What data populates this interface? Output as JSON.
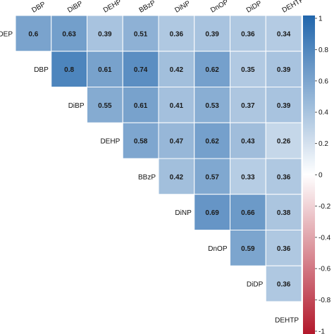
{
  "chart_data": {
    "type": "heatmap",
    "variables": [
      "DEP",
      "DBP",
      "DiBP",
      "DEHP",
      "BBzP",
      "DiNP",
      "DnOP",
      "DiDP",
      "DEHTP"
    ],
    "column_labels": [
      "DBP",
      "DiBP",
      "DEHP",
      "BBzP",
      "DiNP",
      "DnOP",
      "DiDP",
      "DEHTP"
    ],
    "row_labels": [
      "DEP",
      "DBP",
      "DiBP",
      "DEHP",
      "BBzP",
      "DiNP",
      "DnOP",
      "DiDP",
      "DEHTP"
    ],
    "values": [
      [
        0.6,
        0.63,
        0.39,
        0.51,
        0.36,
        0.39,
        0.36,
        0.34
      ],
      [
        0.8,
        0.61,
        0.74,
        0.42,
        0.62,
        0.35,
        0.39
      ],
      [
        0.55,
        0.61,
        0.41,
        0.53,
        0.37,
        0.39
      ],
      [
        0.58,
        0.47,
        0.62,
        0.43,
        0.26
      ],
      [
        0.42,
        0.57,
        0.33,
        0.36
      ],
      [
        0.69,
        0.66,
        0.38
      ],
      [
        0.59,
        0.36
      ],
      [
        0.36
      ]
    ],
    "value_labels": [
      [
        "0.6",
        "0.63",
        "0.39",
        "0.51",
        "0.36",
        "0.39",
        "0.36",
        "0.34"
      ],
      [
        "0.8",
        "0.61",
        "0.74",
        "0.42",
        "0.62",
        "0.35",
        "0.39"
      ],
      [
        "0.55",
        "0.61",
        "0.41",
        "0.53",
        "0.37",
        "0.39"
      ],
      [
        "0.58",
        "0.47",
        "0.62",
        "0.43",
        "0.26"
      ],
      [
        "0.42",
        "0.57",
        "0.33",
        "0.36"
      ],
      [
        "0.69",
        "0.66",
        "0.38"
      ],
      [
        "0.59",
        "0.36"
      ],
      [
        "0.36"
      ]
    ],
    "triangle": "upper",
    "color_scale": {
      "min": -1,
      "max": 1,
      "ticks": [
        "1",
        "0.8",
        "0.6",
        "0.4",
        "0.2",
        "0",
        "-0.2",
        "-0.4",
        "-0.6",
        "-0.8",
        "-1"
      ],
      "colors": {
        "negative": "#b2182b",
        "mid": "#ffffff",
        "positive": "#2166ac"
      }
    }
  }
}
